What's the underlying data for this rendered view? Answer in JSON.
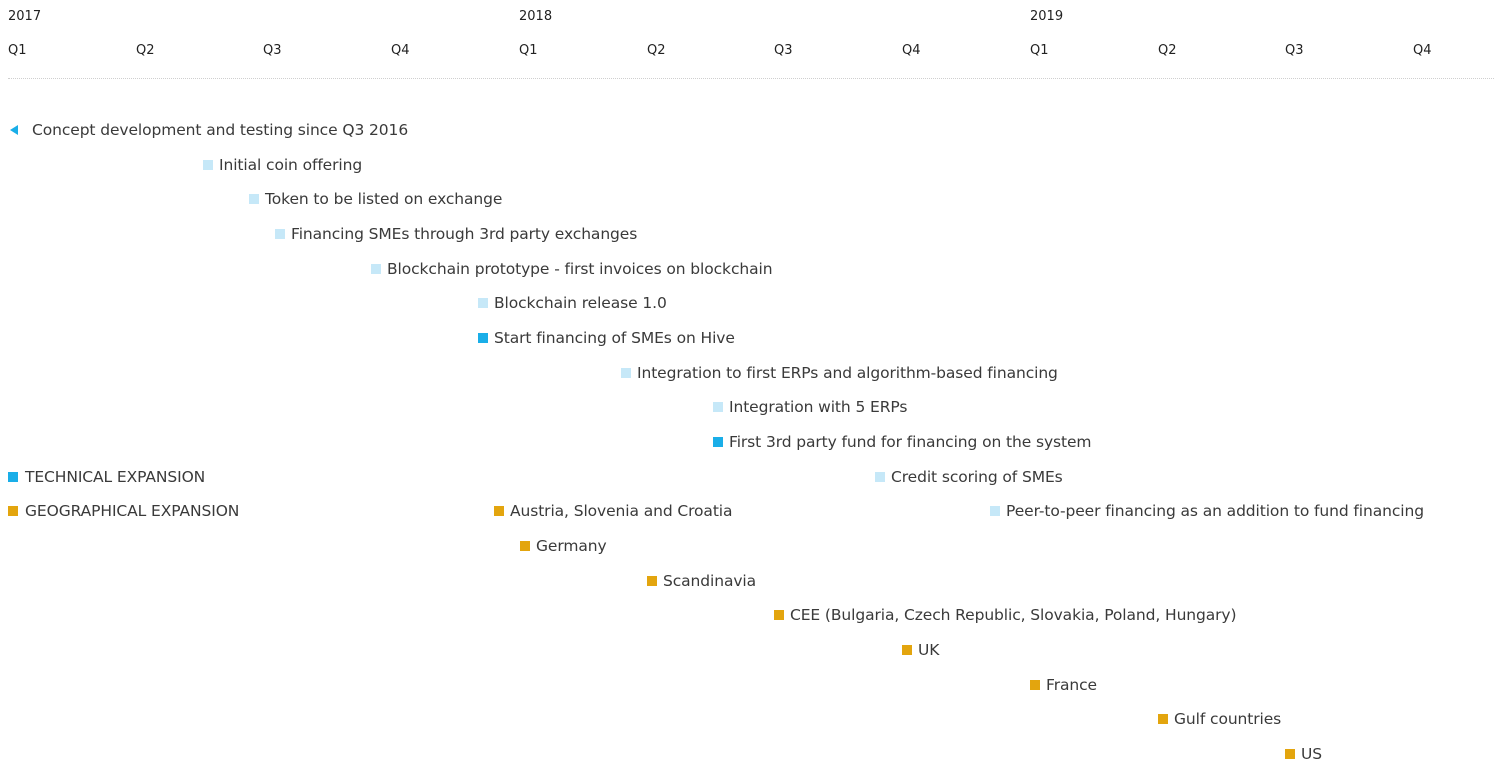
{
  "colors": {
    "technical_dark": "#1aaee8",
    "technical_light": "#c6e8f8",
    "geographical": "#e3a50e"
  },
  "timeline": {
    "years": [
      "2017",
      "2018",
      "2019"
    ],
    "quarters": [
      "Q1",
      "Q2",
      "Q3",
      "Q4",
      "Q1",
      "Q2",
      "Q3",
      "Q4",
      "Q1",
      "Q2",
      "Q3",
      "Q4"
    ]
  },
  "legend": {
    "technical": "TECHNICAL EXPANSION",
    "geographical": "GEOGRAPHICAL EXPANSION"
  },
  "milestones": [
    {
      "label": "Concept development and testing since Q3 2016",
      "category": "technical",
      "marker": "triangle",
      "shade": "dark"
    },
    {
      "label": "Initial coin offering",
      "category": "technical",
      "marker": "square",
      "shade": "light"
    },
    {
      "label": "Token to be listed on exchange",
      "category": "technical",
      "marker": "square",
      "shade": "light"
    },
    {
      "label": "Financing SMEs through 3rd party exchanges",
      "category": "technical",
      "marker": "square",
      "shade": "light"
    },
    {
      "label": "Blockchain prototype - first invoices on blockchain",
      "category": "technical",
      "marker": "square",
      "shade": "light"
    },
    {
      "label": "Blockchain release 1.0",
      "category": "technical",
      "marker": "square",
      "shade": "light"
    },
    {
      "label": "Start financing of SMEs on Hive",
      "category": "technical",
      "marker": "square",
      "shade": "dark"
    },
    {
      "label": "Integration to first ERPs and algorithm-based financing",
      "category": "technical",
      "marker": "square",
      "shade": "light"
    },
    {
      "label": "Integration with 5 ERPs",
      "category": "technical",
      "marker": "square",
      "shade": "light"
    },
    {
      "label": "First 3rd party fund for financing on the system",
      "category": "technical",
      "marker": "square",
      "shade": "dark"
    },
    {
      "label": "Credit scoring of SMEs",
      "category": "technical",
      "marker": "square",
      "shade": "light"
    },
    {
      "label": "Peer-to-peer financing as an addition to fund financing",
      "category": "technical",
      "marker": "square",
      "shade": "light"
    },
    {
      "label": "Austria, Slovenia and Croatia",
      "category": "geographical",
      "marker": "square",
      "shade": "dark"
    },
    {
      "label": "Germany",
      "category": "geographical",
      "marker": "square",
      "shade": "dark"
    },
    {
      "label": "Scandinavia",
      "category": "geographical",
      "marker": "square",
      "shade": "dark"
    },
    {
      "label": "CEE (Bulgaria, Czech Republic, Slovakia, Poland, Hungary)",
      "category": "geographical",
      "marker": "square",
      "shade": "dark"
    },
    {
      "label": "UK",
      "category": "geographical",
      "marker": "square",
      "shade": "dark"
    },
    {
      "label": "France",
      "category": "geographical",
      "marker": "square",
      "shade": "dark"
    },
    {
      "label": "Gulf countries",
      "category": "geographical",
      "marker": "square",
      "shade": "dark"
    },
    {
      "label": "US",
      "category": "geographical",
      "marker": "square",
      "shade": "dark"
    }
  ]
}
